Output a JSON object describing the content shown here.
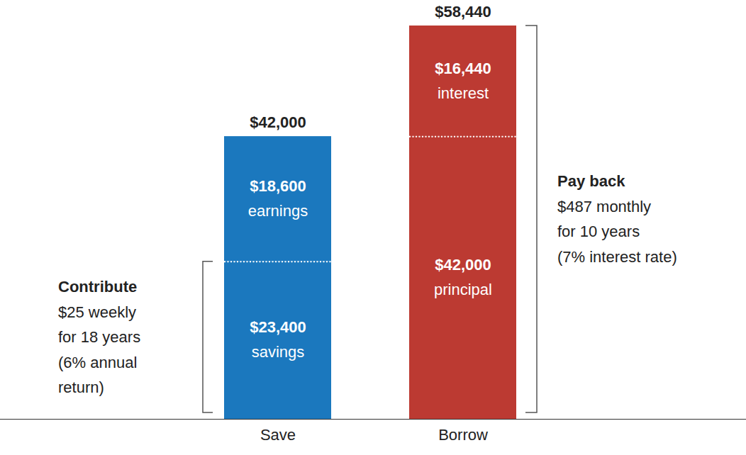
{
  "chart_data": {
    "type": "bar",
    "stacked": true,
    "data_labels": true,
    "tick_labels": "x",
    "grid": false,
    "categories": [
      "Save",
      "Borrow"
    ],
    "ylim": [
      0,
      58440
    ],
    "yticks": [],
    "series": [
      {
        "name": "savings",
        "color": "#1b78be",
        "values": [
          23400,
          null
        ],
        "value_labels": [
          "$23,400",
          null
        ]
      },
      {
        "name": "earnings",
        "color": "#1b78be",
        "values": [
          18600,
          null
        ],
        "value_labels": [
          "$18,600",
          null
        ]
      },
      {
        "name": "principal",
        "color": "#bc3a32",
        "values": [
          null,
          42000
        ],
        "value_labels": [
          null,
          "$42,000"
        ]
      },
      {
        "name": "interest",
        "color": "#bc3a32",
        "values": [
          null,
          16440
        ],
        "value_labels": [
          null,
          "$16,440"
        ]
      }
    ],
    "totals": {
      "values": [
        42000,
        58440
      ],
      "value_labels": [
        "$42,000",
        "$58,440"
      ]
    },
    "annotations": [
      {
        "category": "Save",
        "side": "left",
        "spans": [
          "savings"
        ],
        "lines": [
          "Contribute",
          "$25 weekly",
          "for 18 years",
          "(6% annual",
          "return)"
        ]
      },
      {
        "category": "Borrow",
        "side": "right",
        "spans": [
          "principal",
          "interest"
        ],
        "lines": [
          "Pay back",
          "$487 monthly",
          "for 10 years",
          "(7% interest rate)"
        ]
      }
    ]
  }
}
